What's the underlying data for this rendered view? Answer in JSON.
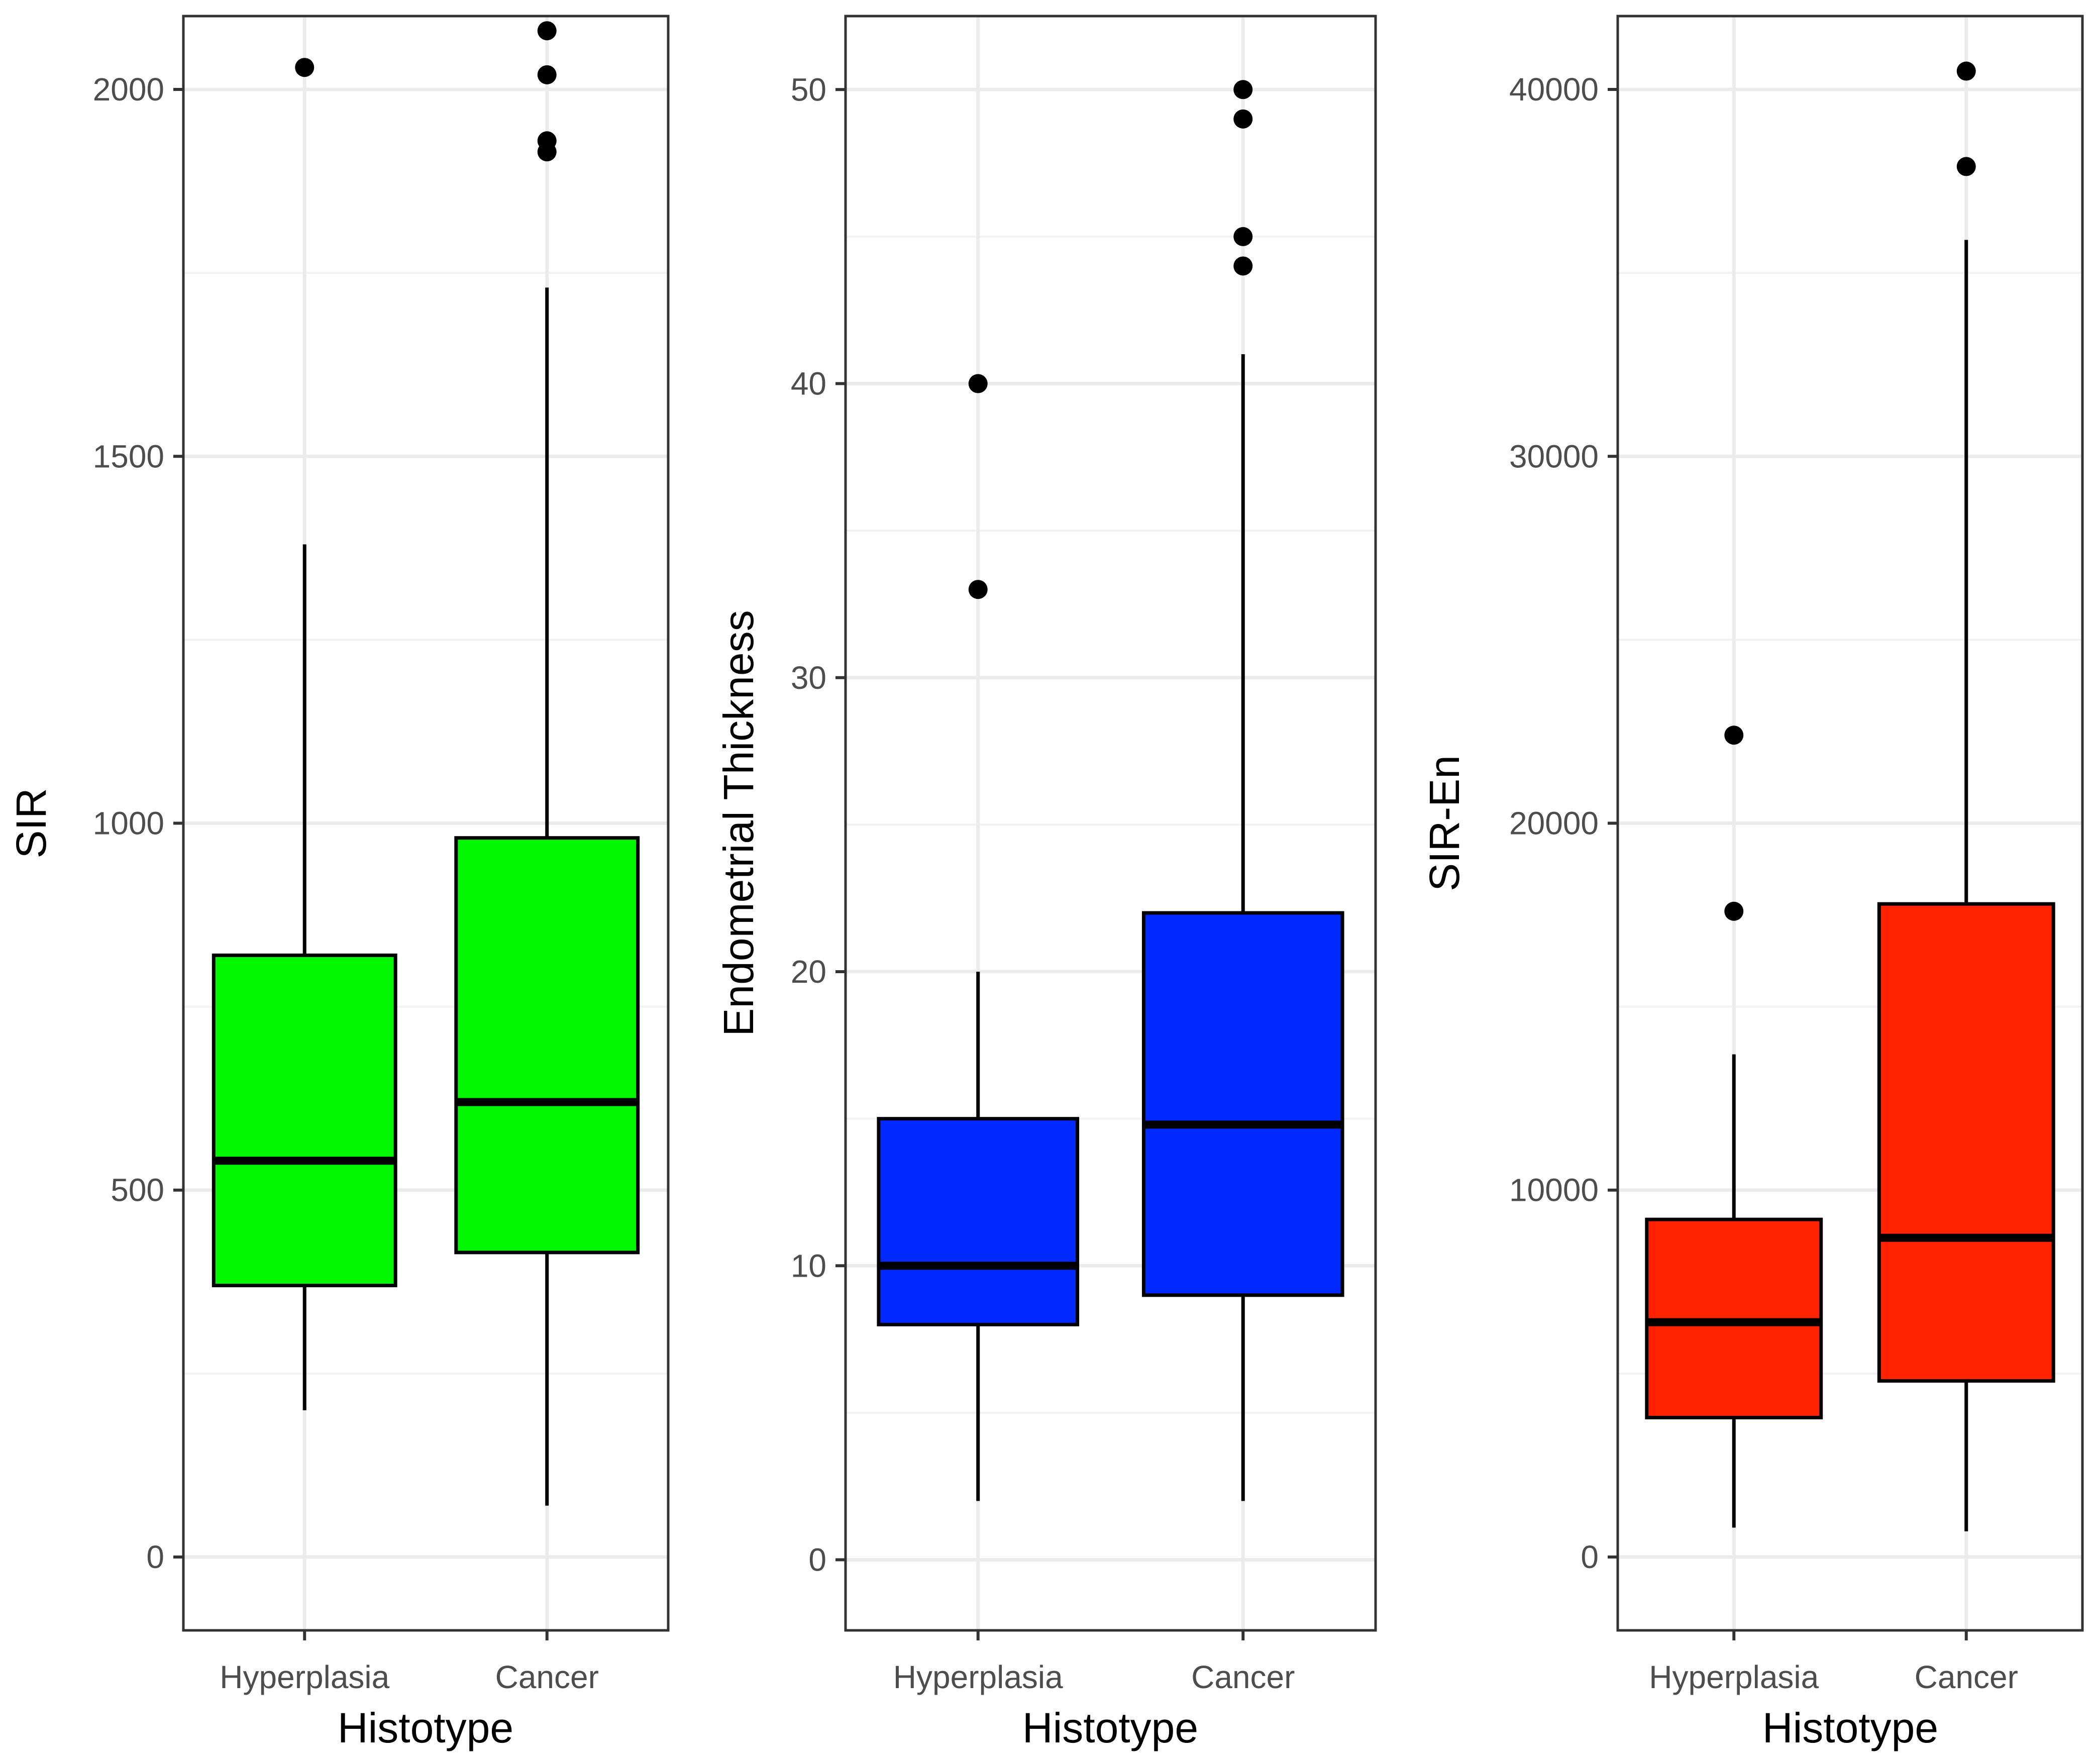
{
  "chart_data": [
    {
      "type": "boxplot",
      "xlabel": "Histotype",
      "ylabel": "SIR",
      "ylim": [
        -100,
        2100
      ],
      "yticks": [
        0,
        500,
        1000,
        1500,
        2000
      ],
      "categories": [
        "Hyperplasia",
        "Cancer"
      ],
      "fill": "#00F700",
      "boxes": [
        {
          "category": "Hyperplasia",
          "whisker_low": 200,
          "q1": 370,
          "median": 540,
          "q3": 820,
          "whisker_high": 1380,
          "outliers": [
            2030
          ]
        },
        {
          "category": "Cancer",
          "whisker_low": 70,
          "q1": 415,
          "median": 620,
          "q3": 980,
          "whisker_high": 1730,
          "outliers": [
            2080,
            2020,
            1930,
            1915
          ]
        }
      ]
    },
    {
      "type": "boxplot",
      "xlabel": "Histotype",
      "ylabel": "Endometrial Thickness",
      "ylim": [
        -2.4,
        52.5
      ],
      "yticks": [
        0,
        10,
        20,
        30,
        40,
        50
      ],
      "categories": [
        "Hyperplasia",
        "Cancer"
      ],
      "fill": "#0029FF",
      "boxes": [
        {
          "category": "Hyperplasia",
          "whisker_low": 2,
          "q1": 8,
          "median": 10,
          "q3": 15,
          "whisker_high": 20,
          "outliers": [
            40,
            33
          ]
        },
        {
          "category": "Cancer",
          "whisker_low": 2,
          "q1": 9,
          "median": 14.8,
          "q3": 22,
          "whisker_high": 41,
          "outliers": [
            50,
            49,
            45,
            44
          ]
        }
      ]
    },
    {
      "type": "boxplot",
      "xlabel": "Histotype",
      "ylabel": "SIR-En",
      "ylim": [
        -2000,
        42000
      ],
      "yticks": [
        0,
        10000,
        20000,
        30000,
        40000
      ],
      "categories": [
        "Hyperplasia",
        "Cancer"
      ],
      "fill": "#FF2200",
      "boxes": [
        {
          "category": "Hyperplasia",
          "whisker_low": 800,
          "q1": 3800,
          "median": 6400,
          "q3": 9200,
          "whisker_high": 13700,
          "outliers": [
            22400,
            17600
          ]
        },
        {
          "category": "Cancer",
          "whisker_low": 700,
          "q1": 4800,
          "median": 8700,
          "q3": 17800,
          "whisker_high": 35900,
          "outliers": [
            40500,
            37900
          ]
        }
      ]
    }
  ]
}
